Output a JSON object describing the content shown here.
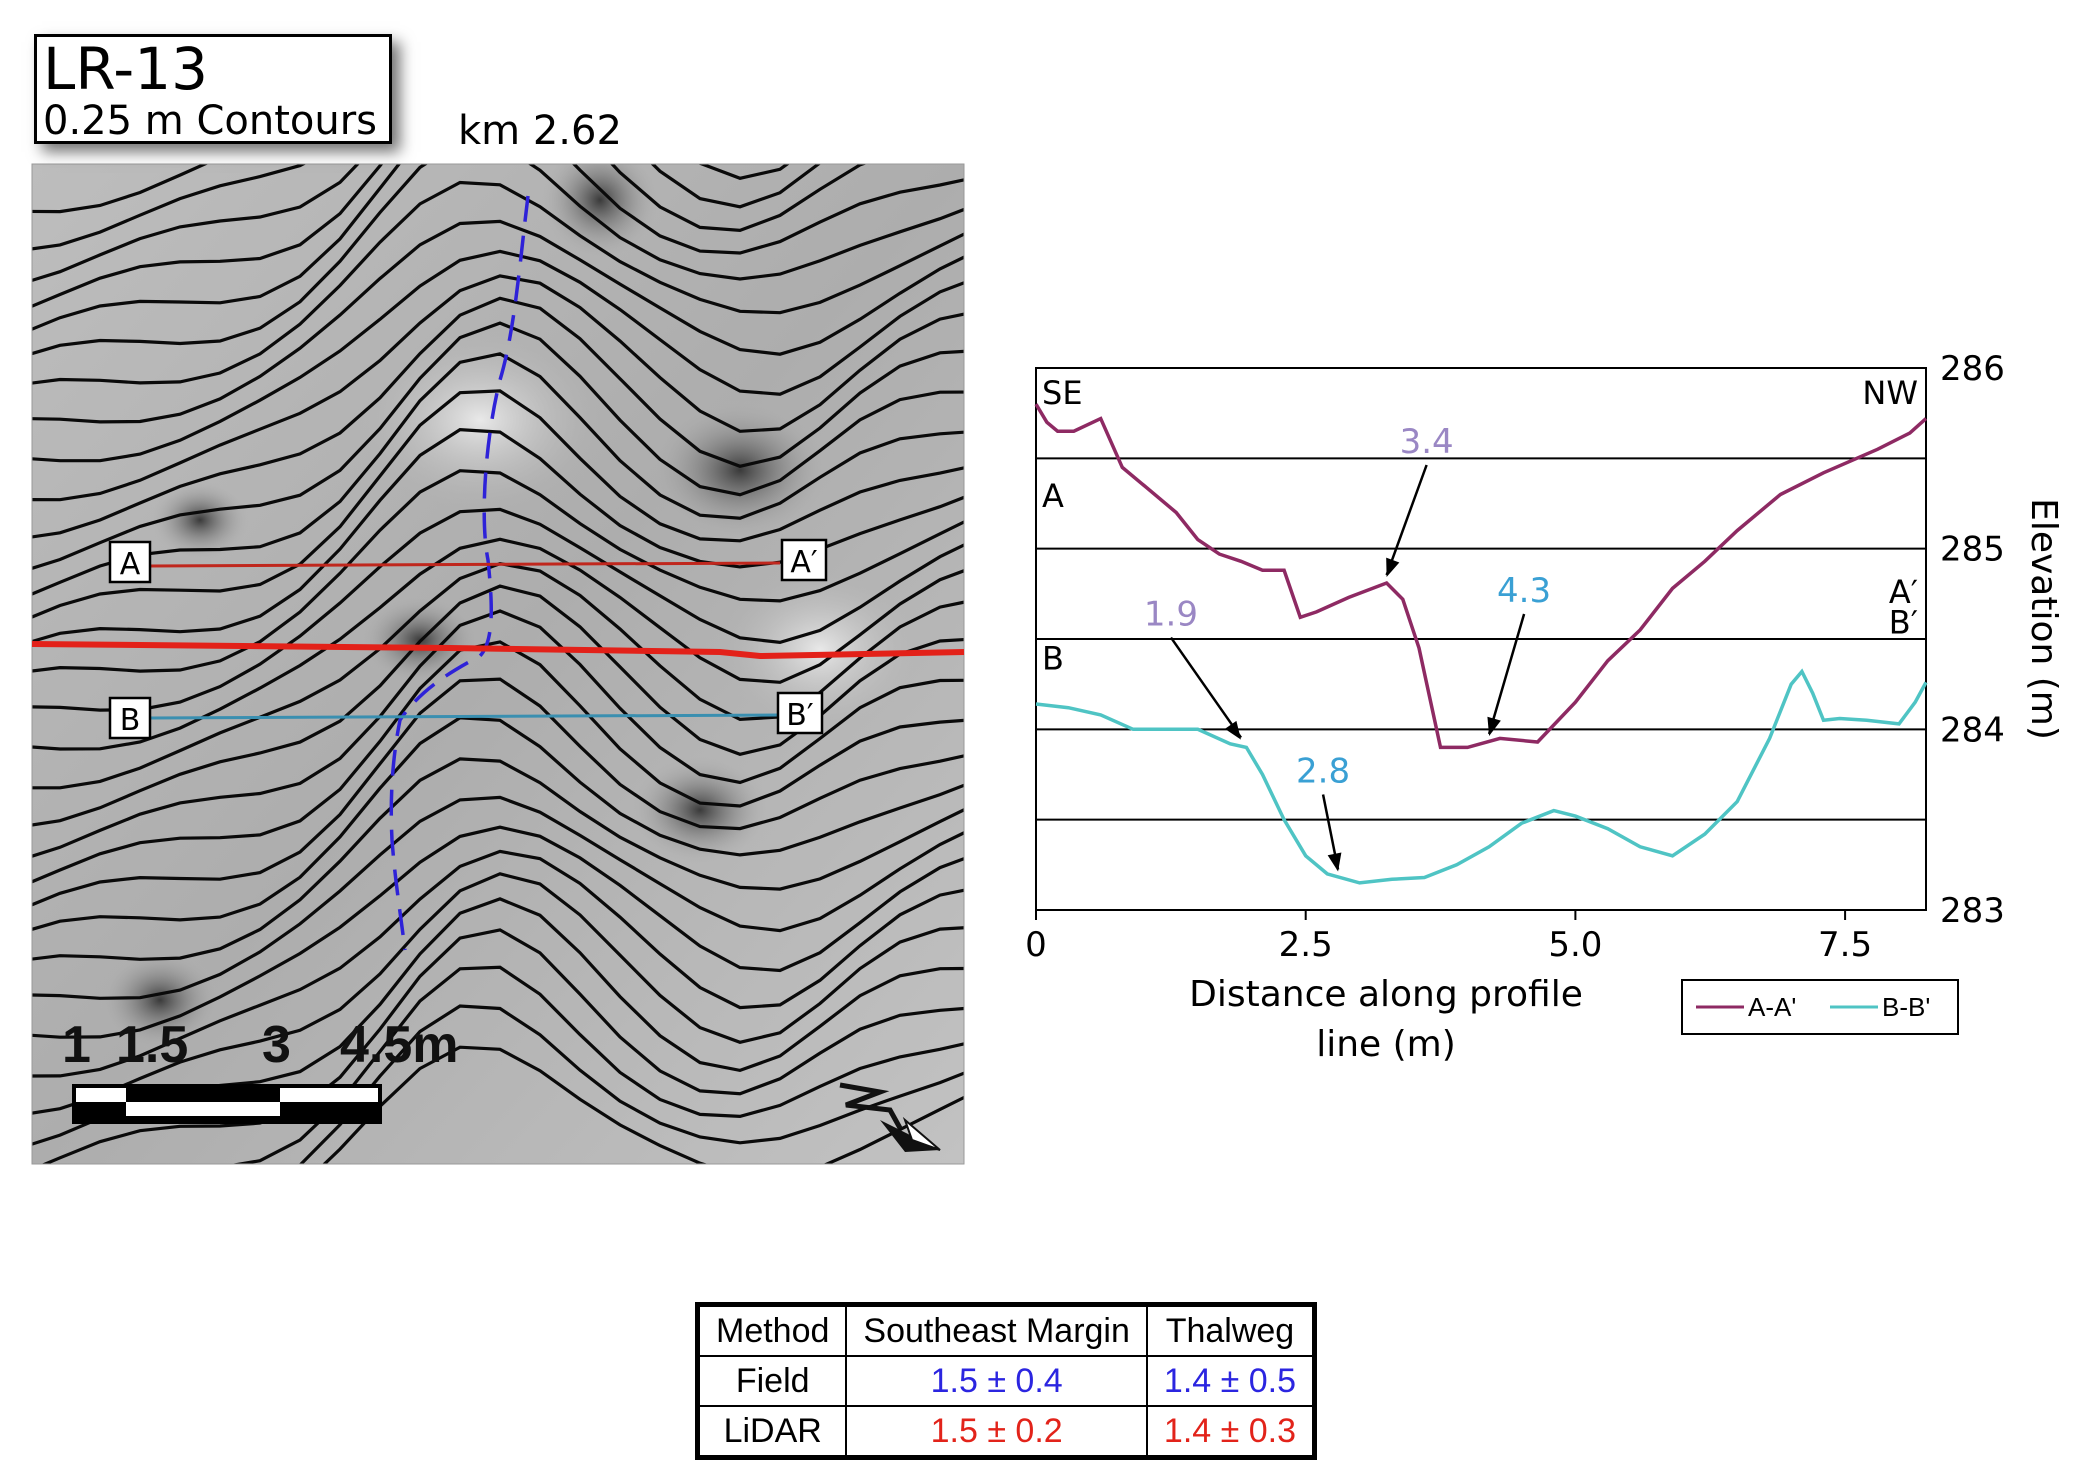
{
  "map": {
    "title": "LR-13",
    "subtitle": "0.25 m Contours",
    "km_label": "km 2.62",
    "section_labels": {
      "a": "A",
      "a_prime": "A′",
      "b": "B",
      "b_prime": "B′"
    },
    "scale_labels": [
      "1",
      "1.5",
      "3",
      "4.5m"
    ],
    "colors": {
      "line_a": "#c0271d",
      "line_b": "#3a8fb0",
      "main_line": "#e32119",
      "thalweg": "#2e22d8",
      "contour": "#0a0a0a"
    }
  },
  "chart_data": {
    "type": "line",
    "xlabel": "Distance along profile line (m)",
    "ylabel": "Elevation (m)",
    "xlim": [
      0,
      8.25
    ],
    "ylim": [
      283,
      286
    ],
    "xticks": [
      0,
      2.5,
      5.0,
      7.5
    ],
    "xtick_labels": [
      "0",
      "2.5",
      "5.0",
      "7.5"
    ],
    "yticks": [
      283,
      284,
      285,
      286
    ],
    "ytick_labels": [
      "283",
      "284",
      "285",
      "286"
    ],
    "grid_y": [
      283.5,
      284,
      284.5,
      285,
      285.5
    ],
    "corner_labels": {
      "left": "SE",
      "right": "NW"
    },
    "series": [
      {
        "name": "A-A'",
        "start_label": "A",
        "end_label": "A′",
        "color": "#8e2a63",
        "x": [
          0,
          0.1,
          0.2,
          0.35,
          0.6,
          0.8,
          1.0,
          1.3,
          1.5,
          1.7,
          1.9,
          2.1,
          2.3,
          2.45,
          2.6,
          2.9,
          3.25,
          3.4,
          3.55,
          3.75,
          4.0,
          4.3,
          4.65,
          5.0,
          5.3,
          5.6,
          5.9,
          6.2,
          6.5,
          6.9,
          7.3,
          7.8,
          8.1,
          8.25
        ],
        "y": [
          285.8,
          285.7,
          285.65,
          285.65,
          285.72,
          285.45,
          285.35,
          285.2,
          285.05,
          284.97,
          284.93,
          284.88,
          284.88,
          284.62,
          284.65,
          284.73,
          284.81,
          284.72,
          284.45,
          283.9,
          283.9,
          283.95,
          283.93,
          284.15,
          284.38,
          284.55,
          284.78,
          284.93,
          285.1,
          285.3,
          285.42,
          285.55,
          285.64,
          285.72
        ]
      },
      {
        "name": "B-B'",
        "start_label": "B",
        "end_label": "B′",
        "color": "#4fc4c4",
        "x": [
          0,
          0.3,
          0.6,
          0.9,
          1.2,
          1.5,
          1.8,
          1.95,
          2.1,
          2.3,
          2.5,
          2.7,
          3.0,
          3.3,
          3.6,
          3.9,
          4.2,
          4.5,
          4.8,
          5.0,
          5.3,
          5.6,
          5.9,
          6.2,
          6.5,
          6.8,
          7.0,
          7.1,
          7.2,
          7.3,
          7.45,
          7.7,
          8.0,
          8.15,
          8.25
        ],
        "y": [
          284.14,
          284.12,
          284.08,
          284.0,
          284.0,
          284.0,
          283.92,
          283.9,
          283.75,
          283.5,
          283.3,
          283.2,
          283.15,
          283.17,
          283.18,
          283.25,
          283.35,
          283.48,
          283.55,
          283.52,
          283.45,
          283.35,
          283.3,
          283.42,
          283.6,
          283.95,
          284.25,
          284.32,
          284.2,
          284.05,
          284.06,
          284.05,
          284.03,
          284.15,
          284.26
        ]
      }
    ],
    "annotations": [
      {
        "text": "3.4",
        "series": "A-A'",
        "x": 3.25,
        "y": 284.81,
        "color": "#9a87c4"
      },
      {
        "text": "4.3",
        "series": "A-A'",
        "x": 4.2,
        "y": 283.93,
        "color": "#3aa0d4"
      },
      {
        "text": "1.9",
        "series": "B-B'",
        "x": 1.9,
        "y": 283.91,
        "color": "#9a87c4"
      },
      {
        "text": "2.8",
        "series": "B-B'",
        "x": 2.8,
        "y": 283.18,
        "color": "#3aa0d4"
      }
    ],
    "legend": {
      "position": "bottom-right",
      "items": [
        "A-A'",
        "B-B'"
      ]
    }
  },
  "table": {
    "headers": [
      "Method",
      "Southeast Margin",
      "Thalweg"
    ],
    "rows": [
      {
        "method": "Field",
        "southeast_margin": "1.5 ± 0.4",
        "thalweg": "1.4 ± 0.5"
      },
      {
        "method": "LiDAR",
        "southeast_margin": "1.5 ± 0.2",
        "thalweg": "1.4 ± 0.3"
      }
    ]
  }
}
